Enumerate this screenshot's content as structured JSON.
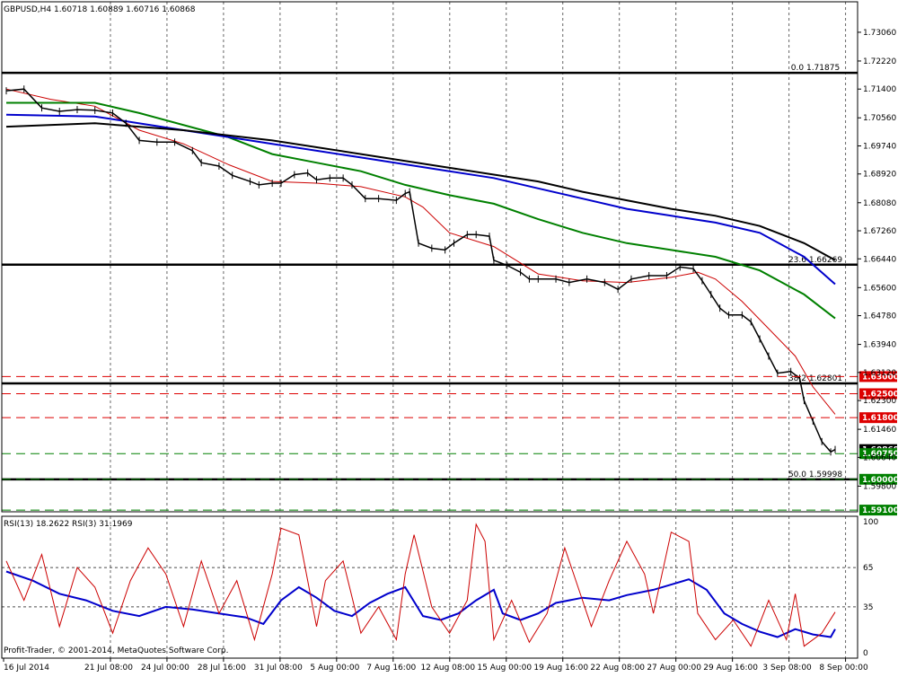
{
  "window": {
    "header": "GBPUSD,H4  1.60718 1.60889 1.60716 1.60868",
    "copyright": "Profit-Trader, © 2001-2014, MetaQuotes Software Corp."
  },
  "indicator": {
    "header": "RSI(13) 18.2622  RSI(3) 31.1969",
    "levels": [
      "100",
      "65",
      "35",
      "0"
    ]
  },
  "chart_data": [
    {
      "type": "line",
      "symbol": "GBPUSD",
      "timeframe": "H4",
      "ohlc_last": {
        "open": 1.60718,
        "high": 1.60889,
        "low": 1.60716,
        "close": 1.60868
      },
      "x_labels": [
        "16 Jul 2014",
        "21 Jul 08:00",
        "24 Jul 00:00",
        "28 Jul 16:00",
        "31 Jul 08:00",
        "5 Aug 00:00",
        "7 Aug 16:00",
        "12 Aug 08:00",
        "15 Aug 00:00",
        "19 Aug 16:00",
        "22 Aug 08:00",
        "27 Aug 00:00",
        "29 Aug 16:00",
        "3 Sep 08:00",
        "8 Sep 00:00"
      ],
      "y_ticks": [
        "1.73060",
        "1.72220",
        "1.71400",
        "1.70560",
        "1.69740",
        "1.68920",
        "1.68080",
        "1.67260",
        "1.66440",
        "1.65600",
        "1.64780",
        "1.63940",
        "1.63120",
        "1.62300",
        "1.61460",
        "1.60640",
        "1.59800"
      ],
      "ylim": [
        1.5905,
        1.7395
      ],
      "current_price": 1.60868,
      "price_path": [
        [
          0,
          1.7135
        ],
        [
          4,
          1.714
        ],
        [
          8,
          1.7085
        ],
        [
          12,
          1.7075
        ],
        [
          16,
          1.708
        ],
        [
          20,
          1.7078
        ],
        [
          24,
          1.707
        ],
        [
          27,
          1.704
        ],
        [
          30,
          1.699
        ],
        [
          34,
          1.6985
        ],
        [
          38,
          1.6985
        ],
        [
          42,
          1.696
        ],
        [
          44,
          1.6925
        ],
        [
          48,
          1.6915
        ],
        [
          51,
          1.6888
        ],
        [
          55,
          1.687
        ],
        [
          57,
          1.686
        ],
        [
          60,
          1.6865
        ],
        [
          62,
          1.6865
        ],
        [
          65,
          1.689
        ],
        [
          68,
          1.6895
        ],
        [
          70,
          1.6875
        ],
        [
          73,
          1.688
        ],
        [
          76,
          1.688
        ],
        [
          78,
          1.686
        ],
        [
          81,
          1.682
        ],
        [
          84,
          1.682
        ],
        [
          88,
          1.6815
        ],
        [
          90,
          1.6835
        ],
        [
          91,
          1.684
        ],
        [
          93,
          1.669
        ],
        [
          96,
          1.6675
        ],
        [
          99,
          1.667
        ],
        [
          101,
          1.669
        ],
        [
          104,
          1.6715
        ],
        [
          106,
          1.6715
        ],
        [
          109,
          1.671
        ],
        [
          110,
          1.664
        ],
        [
          113,
          1.6625
        ],
        [
          116,
          1.6605
        ],
        [
          118,
          1.6585
        ],
        [
          120,
          1.6585
        ],
        [
          124,
          1.6585
        ],
        [
          127,
          1.6575
        ],
        [
          131,
          1.6585
        ],
        [
          135,
          1.6575
        ],
        [
          138,
          1.6555
        ],
        [
          141,
          1.6585
        ],
        [
          145,
          1.6595
        ],
        [
          149,
          1.6595
        ],
        [
          152,
          1.662
        ],
        [
          155,
          1.6615
        ],
        [
          157,
          1.658
        ],
        [
          159,
          1.654
        ],
        [
          161,
          1.65
        ],
        [
          163,
          1.648
        ],
        [
          166,
          1.648
        ],
        [
          168,
          1.646
        ],
        [
          170,
          1.641
        ],
        [
          172,
          1.636
        ],
        [
          174,
          1.631
        ],
        [
          177,
          1.6315
        ],
        [
          179,
          1.6295
        ],
        [
          180,
          1.623
        ],
        [
          182,
          1.617
        ],
        [
          184,
          1.611
        ],
        [
          186,
          1.608
        ],
        [
          187,
          1.6087
        ]
      ],
      "series": [
        {
          "name": "",
          "color": "#cc0000",
          "values": [
            [
              0,
              1.714
            ],
            [
              10,
              1.711
            ],
            [
              20,
              1.709
            ],
            [
              30,
              1.702
            ],
            [
              40,
              1.698
            ],
            [
              50,
              1.692
            ],
            [
              60,
              1.687
            ],
            [
              70,
              1.6865
            ],
            [
              80,
              1.6855
            ],
            [
              90,
              1.6825
            ],
            [
              94,
              1.6795
            ],
            [
              100,
              1.672
            ],
            [
              110,
              1.668
            ],
            [
              120,
              1.66
            ],
            [
              130,
              1.658
            ],
            [
              140,
              1.6575
            ],
            [
              150,
              1.659
            ],
            [
              156,
              1.6605
            ],
            [
              160,
              1.6585
            ],
            [
              166,
              1.652
            ],
            [
              172,
              1.644
            ],
            [
              178,
              1.636
            ],
            [
              182,
              1.627
            ],
            [
              187,
              1.619
            ]
          ]
        },
        {
          "name": "",
          "color": "#008000",
          "values": [
            [
              0,
              1.71
            ],
            [
              20,
              1.71
            ],
            [
              30,
              1.707
            ],
            [
              50,
              1.7
            ],
            [
              60,
              1.695
            ],
            [
              70,
              1.6925
            ],
            [
              80,
              1.69
            ],
            [
              90,
              1.686
            ],
            [
              100,
              1.683
            ],
            [
              110,
              1.6805
            ],
            [
              120,
              1.676
            ],
            [
              130,
              1.672
            ],
            [
              140,
              1.669
            ],
            [
              150,
              1.667
            ],
            [
              160,
              1.665
            ],
            [
              170,
              1.661
            ],
            [
              180,
              1.654
            ],
            [
              187,
              1.647
            ]
          ]
        },
        {
          "name": "",
          "color": "#0000cc",
          "values": [
            [
              0,
              1.7065
            ],
            [
              20,
              1.706
            ],
            [
              40,
              1.702
            ],
            [
              60,
              1.698
            ],
            [
              80,
              1.694
            ],
            [
              100,
              1.69
            ],
            [
              110,
              1.688
            ],
            [
              120,
              1.685
            ],
            [
              130,
              1.682
            ],
            [
              140,
              1.679
            ],
            [
              150,
              1.677
            ],
            [
              160,
              1.675
            ],
            [
              170,
              1.672
            ],
            [
              180,
              1.665
            ],
            [
              187,
              1.657
            ]
          ]
        },
        {
          "name": "",
          "color": "#000000",
          "values": [
            [
              0,
              1.703
            ],
            [
              20,
              1.704
            ],
            [
              40,
              1.702
            ],
            [
              60,
              1.699
            ],
            [
              80,
              1.695
            ],
            [
              100,
              1.691
            ],
            [
              120,
              1.687
            ],
            [
              130,
              1.684
            ],
            [
              140,
              1.6815
            ],
            [
              150,
              1.679
            ],
            [
              160,
              1.677
            ],
            [
              170,
              1.674
            ],
            [
              180,
              1.669
            ],
            [
              187,
              1.664
            ]
          ]
        }
      ],
      "levels": [
        {
          "label": "0.0 1.71875",
          "value": 1.71875,
          "color": "#000000",
          "style": "solid"
        },
        {
          "label": "23.6 1.66269",
          "value": 1.66269,
          "color": "#000000",
          "style": "solid"
        },
        {
          "label": "38.2 1.62801",
          "value": 1.62801,
          "color": "#000000",
          "style": "solid"
        },
        {
          "label": "50.0 1.59998",
          "value": 1.59998,
          "color": "#000000",
          "style": "solid"
        }
      ],
      "price_tags": [
        {
          "label": "1.63000",
          "value": 1.63,
          "color": "#dd0000",
          "style": "dashed"
        },
        {
          "label": "1.62500",
          "value": 1.625,
          "color": "#dd0000",
          "style": "dashed"
        },
        {
          "label": "1.61800",
          "value": 1.618,
          "color": "#dd0000",
          "style": "dashed"
        },
        {
          "label": "1.60750",
          "value": 1.6075,
          "color": "#008000",
          "style": "dashed"
        },
        {
          "label": "1.60000",
          "value": 1.6,
          "color": "#008000",
          "style": "dashed"
        },
        {
          "label": "1.59100",
          "value": 1.591,
          "color": "#008000",
          "style": "dashed"
        }
      ],
      "grid": true
    },
    {
      "type": "line",
      "title": "RSI(13) 18.2622  RSI(3) 31.1969",
      "ylim": [
        0,
        100
      ],
      "levels": [
        65,
        35
      ],
      "series": [
        {
          "name": "RSI(13)",
          "color": "#0000cc",
          "values": [
            [
              0,
              62
            ],
            [
              6,
              55
            ],
            [
              12,
              45
            ],
            [
              18,
              40
            ],
            [
              24,
              32
            ],
            [
              30,
              28
            ],
            [
              36,
              35
            ],
            [
              42,
              33
            ],
            [
              48,
              30
            ],
            [
              54,
              27
            ],
            [
              58,
              22
            ],
            [
              62,
              40
            ],
            [
              66,
              50
            ],
            [
              70,
              42
            ],
            [
              74,
              32
            ],
            [
              78,
              28
            ],
            [
              82,
              38
            ],
            [
              86,
              45
            ],
            [
              90,
              50
            ],
            [
              94,
              28
            ],
            [
              98,
              25
            ],
            [
              102,
              30
            ],
            [
              106,
              40
            ],
            [
              110,
              48
            ],
            [
              112,
              30
            ],
            [
              116,
              25
            ],
            [
              120,
              30
            ],
            [
              124,
              38
            ],
            [
              130,
              42
            ],
            [
              136,
              40
            ],
            [
              140,
              44
            ],
            [
              146,
              48
            ],
            [
              150,
              52
            ],
            [
              154,
              56
            ],
            [
              158,
              48
            ],
            [
              162,
              30
            ],
            [
              166,
              22
            ],
            [
              170,
              16
            ],
            [
              174,
              12
            ],
            [
              178,
              18
            ],
            [
              182,
              14
            ],
            [
              186,
              12
            ],
            [
              187,
              18
            ]
          ]
        },
        {
          "name": "RSI(3)",
          "color": "#cc0000",
          "values": [
            [
              0,
              70
            ],
            [
              4,
              40
            ],
            [
              8,
              75
            ],
            [
              12,
              20
            ],
            [
              16,
              65
            ],
            [
              20,
              50
            ],
            [
              24,
              15
            ],
            [
              28,
              55
            ],
            [
              32,
              80
            ],
            [
              36,
              60
            ],
            [
              40,
              20
            ],
            [
              44,
              70
            ],
            [
              48,
              30
            ],
            [
              52,
              55
            ],
            [
              56,
              10
            ],
            [
              60,
              60
            ],
            [
              62,
              95
            ],
            [
              66,
              90
            ],
            [
              70,
              20
            ],
            [
              72,
              55
            ],
            [
              76,
              70
            ],
            [
              80,
              15
            ],
            [
              84,
              35
            ],
            [
              88,
              10
            ],
            [
              90,
              60
            ],
            [
              92,
              90
            ],
            [
              96,
              35
            ],
            [
              100,
              15
            ],
            [
              104,
              40
            ],
            [
              106,
              98
            ],
            [
              108,
              85
            ],
            [
              110,
              10
            ],
            [
              114,
              40
            ],
            [
              118,
              8
            ],
            [
              122,
              30
            ],
            [
              126,
              80
            ],
            [
              128,
              60
            ],
            [
              132,
              20
            ],
            [
              136,
              55
            ],
            [
              140,
              85
            ],
            [
              144,
              60
            ],
            [
              146,
              30
            ],
            [
              150,
              92
            ],
            [
              154,
              85
            ],
            [
              156,
              30
            ],
            [
              160,
              10
            ],
            [
              164,
              25
            ],
            [
              168,
              5
            ],
            [
              172,
              40
            ],
            [
              176,
              10
            ],
            [
              178,
              45
            ],
            [
              180,
              5
            ],
            [
              184,
              15
            ],
            [
              187,
              31
            ]
          ]
        }
      ]
    }
  ]
}
